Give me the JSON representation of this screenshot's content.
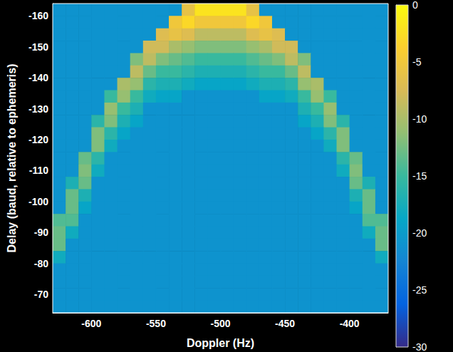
{
  "chart_data": {
    "type": "heatmap",
    "xlabel": "Doppler (Hz)",
    "ylabel": "Delay (baud, relative to ephemeris)",
    "xlim": [
      -630,
      -370
    ],
    "ylim": [
      -64,
      -164
    ],
    "xticks": [
      -600,
      -550,
      -500,
      -450,
      -400
    ],
    "yticks": [
      -160,
      -150,
      -140,
      -130,
      -120,
      -110,
      -100,
      -90,
      -80,
      -70
    ],
    "colorbar_lim": [
      -30,
      0
    ],
    "colorbar_ticks": [
      0,
      -5,
      -10,
      -15,
      -20,
      -25,
      -30
    ],
    "x": [
      -625,
      -615,
      -605,
      -595,
      -585,
      -575,
      -565,
      -555,
      -545,
      -535,
      -525,
      -515,
      -505,
      -495,
      -485,
      -475,
      -465,
      -455,
      -445,
      -435,
      -425,
      -415,
      -405,
      -395,
      -385,
      -375
    ],
    "y": [
      -162,
      -158,
      -154,
      -150,
      -146,
      -142,
      -138,
      -134,
      -130,
      -126,
      -122,
      -118,
      -114,
      -110,
      -106,
      -102,
      -98,
      -94,
      -90,
      -86,
      -82,
      -78,
      -74,
      -70,
      -66
    ],
    "cells": [
      [
        -21,
        -21,
        -21,
        -21,
        -21,
        -21,
        -21,
        -21,
        -21,
        -21,
        -6,
        -2,
        -2,
        -2,
        -2,
        -6,
        -21,
        -21,
        -21,
        -21,
        -21,
        -21,
        -21,
        -21,
        -21,
        -21
      ],
      [
        -21,
        -21,
        -21,
        -21,
        -21,
        -21,
        -21,
        -21,
        -21,
        -5,
        -3,
        -5,
        -5,
        -5,
        -5,
        -3,
        -5,
        -21,
        -21,
        -21,
        -21,
        -21,
        -21,
        -21,
        -21,
        -21
      ],
      [
        -21,
        -21,
        -21,
        -21,
        -21,
        -21,
        -21,
        -21,
        -7,
        -6,
        -7,
        -9,
        -9,
        -9,
        -9,
        -7,
        -6,
        -7,
        -21,
        -21,
        -21,
        -21,
        -21,
        -21,
        -21,
        -21
      ],
      [
        -21,
        -21,
        -21,
        -21,
        -21,
        -21,
        -21,
        -8,
        -8,
        -10,
        -11,
        -12,
        -12,
        -12,
        -12,
        -11,
        -10,
        -8,
        -8,
        -21,
        -21,
        -21,
        -21,
        -21,
        -21,
        -21
      ],
      [
        -21,
        -21,
        -21,
        -21,
        -21,
        -21,
        -12,
        -9,
        -12,
        -13,
        -14,
        -15,
        -15,
        -15,
        -15,
        -14,
        -13,
        -12,
        -9,
        -12,
        -21,
        -21,
        -21,
        -21,
        -21,
        -21
      ],
      [
        -21,
        -21,
        -21,
        -21,
        -21,
        -21,
        -9,
        -13,
        -15,
        -15,
        -16,
        -17,
        -17,
        -17,
        -17,
        -16,
        -15,
        -15,
        -13,
        -9,
        -21,
        -21,
        -21,
        -21,
        -21,
        -21
      ],
      [
        -21,
        -21,
        -21,
        -21,
        -21,
        -10,
        -11,
        -16,
        -17,
        -17,
        -18,
        -19,
        -19,
        -19,
        -19,
        -18,
        -17,
        -17,
        -16,
        -11,
        -10,
        -21,
        -21,
        -21,
        -21,
        -21
      ],
      [
        -21,
        -21,
        -21,
        -21,
        -15,
        -11,
        -15,
        -18,
        -19,
        -19,
        -21,
        -21,
        -21,
        -21,
        -21,
        -21,
        -19,
        -19,
        -18,
        -15,
        -11,
        -15,
        -21,
        -21,
        -21,
        -21
      ],
      [
        -21,
        -21,
        -21,
        -21,
        -11,
        -15,
        -17,
        -21,
        -21,
        -21,
        -21,
        -21,
        -21,
        -21,
        -21,
        -21,
        -21,
        -21,
        -21,
        -17,
        -15,
        -11,
        -21,
        -21,
        -21,
        -21
      ],
      [
        -21,
        -21,
        -21,
        -16,
        -12,
        -17,
        -19,
        -21,
        -21,
        -21,
        -21,
        -21,
        -21,
        -21,
        -21,
        -21,
        -21,
        -21,
        -21,
        -19,
        -17,
        -12,
        -16,
        -21,
        -21,
        -21
      ],
      [
        -21,
        -21,
        -21,
        -12,
        -16,
        -19,
        -21,
        -21,
        -21,
        -21,
        -21,
        -21,
        -21,
        -21,
        -21,
        -21,
        -21,
        -21,
        -21,
        -21,
        -19,
        -16,
        -12,
        -21,
        -21,
        -21
      ],
      [
        -21,
        -21,
        -21,
        -12,
        -18,
        -21,
        -21,
        -21,
        -21,
        -21,
        -21,
        -21,
        -21,
        -21,
        -21,
        -21,
        -21,
        -21,
        -21,
        -21,
        -21,
        -18,
        -12,
        -21,
        -21,
        -21
      ],
      [
        -21,
        -21,
        -13,
        -16,
        -21,
        -21,
        -21,
        -21,
        -21,
        -21,
        -21,
        -21,
        -21,
        -21,
        -21,
        -21,
        -21,
        -21,
        -21,
        -21,
        -21,
        -21,
        -16,
        -13,
        -21,
        -21
      ],
      [
        -21,
        -21,
        -12,
        -18,
        -21,
        -21,
        -21,
        -21,
        -21,
        -21,
        -21,
        -21,
        -21,
        -21,
        -21,
        -21,
        -21,
        -21,
        -21,
        -21,
        -21,
        -21,
        -18,
        -12,
        -21,
        -21
      ],
      [
        -21,
        -17,
        -13,
        -21,
        -21,
        -21,
        -21,
        -21,
        -21,
        -21,
        -21,
        -21,
        -21,
        -21,
        -21,
        -21,
        -21,
        -21,
        -21,
        -21,
        -21,
        -21,
        -21,
        -13,
        -17,
        -21
      ],
      [
        -21,
        -13,
        -17,
        -21,
        -21,
        -21,
        -21,
        -21,
        -21,
        -21,
        -21,
        -21,
        -21,
        -21,
        -21,
        -21,
        -21,
        -21,
        -21,
        -21,
        -21,
        -21,
        -21,
        -17,
        -13,
        -21
      ],
      [
        -21,
        -13,
        -19,
        -21,
        -21,
        -21,
        -21,
        -21,
        -21,
        -21,
        -21,
        -21,
        -21,
        -21,
        -21,
        -21,
        -21,
        -21,
        -21,
        -21,
        -21,
        -21,
        -21,
        -19,
        -13,
        -21
      ],
      [
        -14,
        -14,
        -21,
        -21,
        -21,
        -21,
        -21,
        -21,
        -21,
        -21,
        -21,
        -21,
        -21,
        -21,
        -21,
        -21,
        -21,
        -21,
        -21,
        -21,
        -21,
        -21,
        -21,
        -21,
        -14,
        -14
      ],
      [
        -13,
        -18,
        -21,
        -21,
        -21,
        -21,
        -21,
        -21,
        -21,
        -21,
        -21,
        -21,
        -21,
        -21,
        -21,
        -21,
        -21,
        -21,
        -21,
        -21,
        -21,
        -21,
        -21,
        -21,
        -18,
        -13
      ],
      [
        -13,
        -21,
        -21,
        -21,
        -21,
        -21,
        -21,
        -21,
        -21,
        -21,
        -21,
        -21,
        -21,
        -21,
        -21,
        -21,
        -21,
        -21,
        -21,
        -21,
        -21,
        -21,
        -21,
        -21,
        -21,
        -13
      ],
      [
        -18,
        -21,
        -21,
        -21,
        -21,
        -21,
        -21,
        -21,
        -21,
        -21,
        -21,
        -21,
        -21,
        -21,
        -21,
        -21,
        -21,
        -21,
        -21,
        -21,
        -21,
        -21,
        -21,
        -21,
        -21,
        -18
      ],
      [
        -21,
        -21,
        -21,
        -21,
        -21,
        -21,
        -21,
        -21,
        -21,
        -21,
        -21,
        -21,
        -21,
        -21,
        -21,
        -21,
        -21,
        -21,
        -21,
        -21,
        -21,
        -21,
        -21,
        -21,
        -21,
        -21
      ],
      [
        -21,
        -21,
        -21,
        -21,
        -21,
        -21,
        -21,
        -21,
        -21,
        -21,
        -21,
        -21,
        -21,
        -21,
        -21,
        -21,
        -21,
        -21,
        -21,
        -21,
        -21,
        -21,
        -21,
        -21,
        -21,
        -21
      ],
      [
        -21,
        -21,
        -21,
        -21,
        -21,
        -21,
        -21,
        -21,
        -21,
        -21,
        -21,
        -21,
        -21,
        -21,
        -21,
        -21,
        -21,
        -21,
        -21,
        -21,
        -21,
        -21,
        -21,
        -21,
        -21,
        -21
      ],
      [
        -21,
        -21,
        -21,
        -21,
        -21,
        -21,
        -21,
        -21,
        -21,
        -21,
        -21,
        -21,
        -21,
        -21,
        -21,
        -21,
        -21,
        -21,
        -21,
        -21,
        -21,
        -21,
        -21,
        -21,
        -21,
        -21
      ]
    ]
  }
}
